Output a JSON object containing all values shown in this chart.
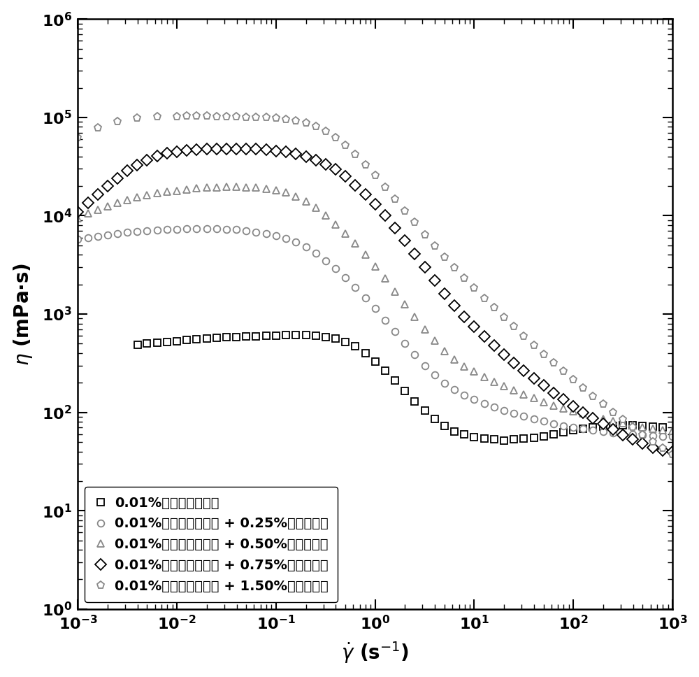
{
  "title": "",
  "xlabel_math": "$\\dot{\\gamma}$",
  "xlabel_unit": "(s$^{-1}$)",
  "ylabel": "$\\eta$ (mPa·s)",
  "xlim_log": [
    -3,
    3
  ],
  "ylim_log": [
    0,
    6
  ],
  "background_color": "#ffffff",
  "series": [
    {
      "label": "0.01%疏水缔合聚合物",
      "color": "#000000",
      "marker": "s",
      "markersize": 7,
      "markerfacecolor": "white",
      "markeredgecolor": "#000000",
      "x": [
        0.004,
        0.005,
        0.0063,
        0.00794,
        0.01,
        0.0126,
        0.0158,
        0.02,
        0.0251,
        0.0316,
        0.0398,
        0.05,
        0.063,
        0.0794,
        0.1,
        0.126,
        0.158,
        0.2,
        0.251,
        0.316,
        0.398,
        0.5,
        0.63,
        0.794,
        1.0,
        1.26,
        1.58,
        2.0,
        2.51,
        3.16,
        3.98,
        5.0,
        6.3,
        7.94,
        10.0,
        12.6,
        15.8,
        20.0,
        25.1,
        31.6,
        39.8,
        50.0,
        63.0,
        79.4,
        100.0,
        126.0,
        158.0,
        200.0,
        251.0,
        316.0,
        398.0,
        500.0,
        630.0,
        800.0
      ],
      "y": [
        490,
        500,
        510,
        520,
        530,
        545,
        555,
        565,
        575,
        580,
        585,
        590,
        595,
        600,
        605,
        608,
        610,
        608,
        600,
        585,
        560,
        520,
        470,
        400,
        330,
        265,
        210,
        165,
        130,
        105,
        86,
        73,
        64,
        60,
        56,
        54,
        53,
        52,
        53,
        54,
        55,
        57,
        60,
        63,
        66,
        68,
        70,
        72,
        73,
        74,
        74,
        73,
        72,
        71
      ]
    },
    {
      "label": "0.01%疏水缔合聚合物 + 0.25%表面活性剤",
      "color": "#888888",
      "marker": "o",
      "markersize": 7,
      "markerfacecolor": "white",
      "markeredgecolor": "#888888",
      "x": [
        0.001,
        0.00126,
        0.00158,
        0.002,
        0.00251,
        0.00316,
        0.00398,
        0.005,
        0.0063,
        0.00794,
        0.01,
        0.0126,
        0.0158,
        0.02,
        0.0251,
        0.0316,
        0.0398,
        0.05,
        0.063,
        0.0794,
        0.1,
        0.126,
        0.158,
        0.2,
        0.251,
        0.316,
        0.398,
        0.5,
        0.63,
        0.794,
        1.0,
        1.26,
        1.58,
        2.0,
        2.51,
        3.16,
        3.98,
        5.0,
        6.3,
        7.94,
        10.0,
        12.6,
        15.8,
        20.0,
        25.1,
        31.6,
        39.8,
        50.0,
        63.0,
        79.4,
        100.0,
        126.0,
        158.0,
        200.0,
        251.0,
        316.0,
        398.0,
        500.0,
        630.0,
        800.0,
        1000.0
      ],
      "y": [
        5800,
        6000,
        6200,
        6400,
        6600,
        6800,
        6900,
        7000,
        7100,
        7200,
        7300,
        7350,
        7380,
        7380,
        7350,
        7300,
        7200,
        7050,
        6850,
        6600,
        6300,
        5900,
        5400,
        4800,
        4150,
        3500,
        2900,
        2350,
        1870,
        1470,
        1140,
        870,
        660,
        500,
        385,
        300,
        240,
        198,
        170,
        150,
        135,
        122,
        113,
        105,
        97,
        91,
        86,
        81,
        77,
        73,
        70,
        68,
        66,
        64,
        62,
        61,
        60,
        59,
        58,
        57,
        57
      ]
    },
    {
      "label": "0.01%疏水缔合聚合物 + 0.50%表面活性剤",
      "color": "#888888",
      "marker": "^",
      "markersize": 7,
      "markerfacecolor": "white",
      "markeredgecolor": "#888888",
      "x": [
        0.001,
        0.00126,
        0.00158,
        0.002,
        0.00251,
        0.00316,
        0.00398,
        0.005,
        0.0063,
        0.00794,
        0.01,
        0.0126,
        0.0158,
        0.02,
        0.0251,
        0.0316,
        0.0398,
        0.05,
        0.063,
        0.0794,
        0.1,
        0.126,
        0.158,
        0.2,
        0.251,
        0.316,
        0.398,
        0.5,
        0.63,
        0.794,
        1.0,
        1.26,
        1.58,
        2.0,
        2.51,
        3.16,
        3.98,
        5.0,
        6.3,
        7.94,
        10.0,
        12.6,
        15.8,
        20.0,
        25.1,
        31.6,
        39.8,
        50.0,
        63.0,
        79.4,
        100.0,
        126.0,
        158.0,
        200.0,
        251.0,
        316.0,
        398.0,
        500.0,
        630.0,
        800.0,
        1000.0
      ],
      "y": [
        9500,
        10500,
        11500,
        12500,
        13500,
        14500,
        15500,
        16200,
        17000,
        17500,
        18000,
        18500,
        19000,
        19300,
        19500,
        19600,
        19600,
        19500,
        19300,
        18900,
        18200,
        17200,
        15800,
        14000,
        12000,
        10000,
        8200,
        6600,
        5200,
        4000,
        3050,
        2300,
        1700,
        1250,
        930,
        700,
        535,
        420,
        345,
        295,
        260,
        230,
        205,
        185,
        168,
        153,
        140,
        128,
        118,
        110,
        103,
        97,
        91,
        86,
        82,
        78,
        74,
        71,
        68,
        66,
        65
      ]
    },
    {
      "label": "0.01%疏水缔合聚合物 + 0.75%表面活性剤",
      "color": "#000000",
      "marker": "D",
      "markersize": 8,
      "markerfacecolor": "white",
      "markeredgecolor": "#000000",
      "x": [
        0.001,
        0.00126,
        0.00158,
        0.002,
        0.00251,
        0.00316,
        0.00398,
        0.005,
        0.0063,
        0.00794,
        0.01,
        0.0126,
        0.0158,
        0.02,
        0.0251,
        0.0316,
        0.0398,
        0.05,
        0.063,
        0.0794,
        0.1,
        0.126,
        0.158,
        0.2,
        0.251,
        0.316,
        0.398,
        0.5,
        0.63,
        0.794,
        1.0,
        1.26,
        1.58,
        2.0,
        2.51,
        3.16,
        3.98,
        5.0,
        6.3,
        7.94,
        10.0,
        12.6,
        15.8,
        20.0,
        25.1,
        31.6,
        39.8,
        50.0,
        63.0,
        79.4,
        100.0,
        126.0,
        158.0,
        200.0,
        251.0,
        316.0,
        398.0,
        500.0,
        630.0,
        800.0,
        1000.0
      ],
      "y": [
        11000,
        13500,
        16500,
        20000,
        24000,
        28500,
        33000,
        37000,
        40500,
        43000,
        44800,
        46000,
        47000,
        47500,
        47800,
        48000,
        48000,
        47800,
        47500,
        46800,
        45800,
        44500,
        42500,
        40000,
        37000,
        33500,
        29500,
        25000,
        20500,
        16500,
        13000,
        10000,
        7500,
        5600,
        4100,
        3000,
        2200,
        1620,
        1220,
        940,
        740,
        590,
        475,
        390,
        320,
        265,
        222,
        187,
        158,
        135,
        116,
        100,
        87,
        76,
        67,
        59,
        53,
        48,
        44,
        41,
        40
      ]
    },
    {
      "label": "0.01%疏水缔合聚合物 + 1.50%表面活性剤",
      "color": "#888888",
      "marker": "p",
      "markersize": 8,
      "markerfacecolor": "white",
      "markeredgecolor": "#888888",
      "x": [
        0.001,
        0.00158,
        0.00251,
        0.00398,
        0.0063,
        0.01,
        0.0126,
        0.0158,
        0.02,
        0.0251,
        0.0316,
        0.0398,
        0.05,
        0.063,
        0.0794,
        0.1,
        0.126,
        0.158,
        0.2,
        0.251,
        0.316,
        0.398,
        0.5,
        0.63,
        0.794,
        1.0,
        1.26,
        1.58,
        2.0,
        2.51,
        3.16,
        3.98,
        5.0,
        6.3,
        7.94,
        10.0,
        12.6,
        15.8,
        20.0,
        25.1,
        31.6,
        39.8,
        50.0,
        63.0,
        79.4,
        100.0,
        126.0,
        158.0,
        200.0,
        251.0,
        316.0,
        398.0,
        500.0,
        630.0,
        800.0,
        1000.0
      ],
      "y": [
        62000,
        78000,
        90000,
        98000,
        101000,
        102000,
        102500,
        102500,
        102500,
        102000,
        101500,
        101000,
        100500,
        100000,
        99000,
        97500,
        95500,
        92500,
        88000,
        81000,
        72000,
        62000,
        52000,
        42000,
        33000,
        25500,
        19500,
        14800,
        11200,
        8500,
        6400,
        4900,
        3800,
        2950,
        2300,
        1820,
        1440,
        1150,
        920,
        740,
        595,
        480,
        390,
        318,
        260,
        213,
        175,
        145,
        120,
        100,
        84,
        70,
        59,
        50,
        43,
        37
      ]
    }
  ]
}
